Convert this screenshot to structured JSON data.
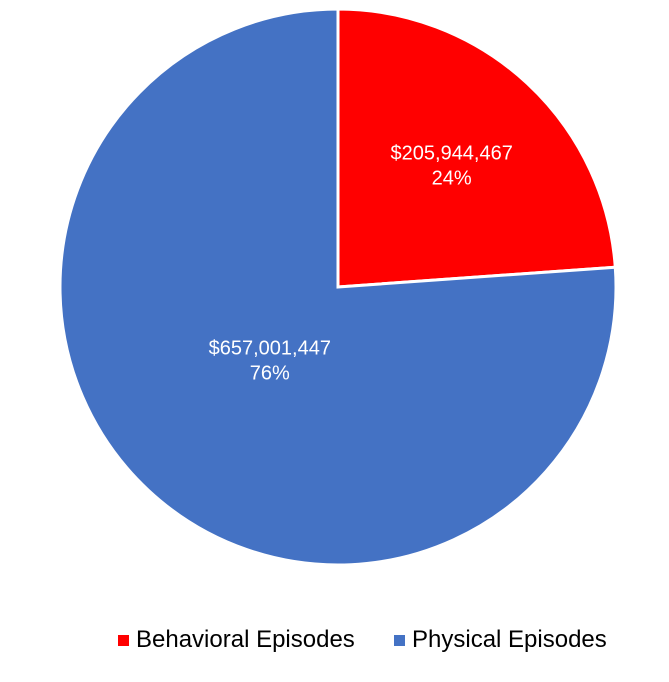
{
  "chart_data": {
    "type": "pie",
    "title": "",
    "start_angle_deg": 0,
    "direction": "clockwise",
    "series": [
      {
        "name": "Behavioral Episodes",
        "value": 205944467,
        "value_label": "$205,944,467",
        "percent_label": "24%",
        "color": "#ff0000"
      },
      {
        "name": "Physical Episodes",
        "value": 657001447,
        "value_label": "$657,001,447",
        "percent_label": "76%",
        "color": "#4472c4"
      }
    ],
    "legend_position": "bottom",
    "slice_border_color": "#ffffff"
  }
}
